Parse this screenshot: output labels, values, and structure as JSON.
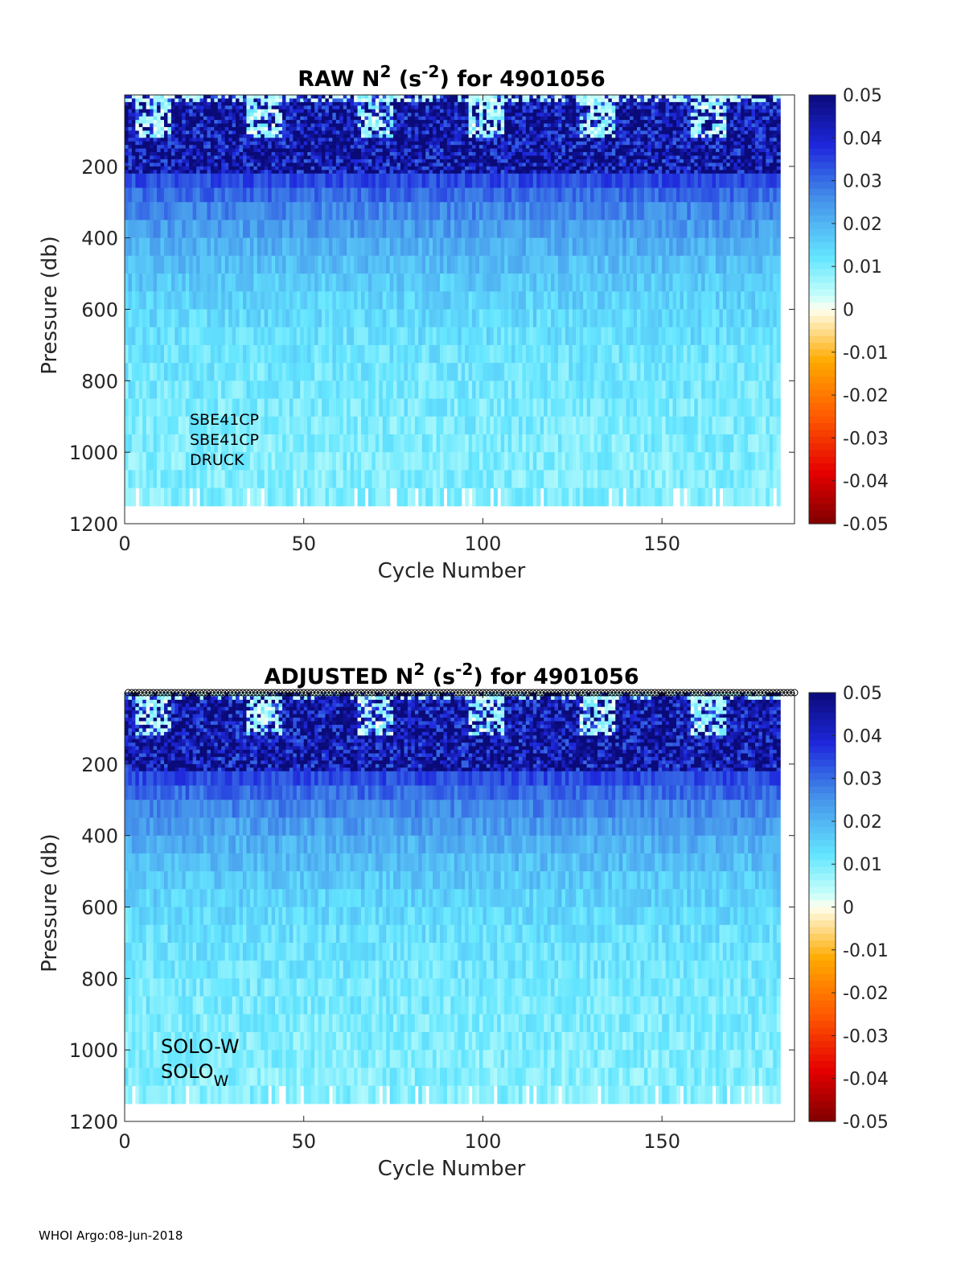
{
  "footer": "WHOI Argo:08-Jun-2018",
  "chart_data": [
    {
      "type": "heatmap",
      "title_parts": [
        "RAW N",
        "2",
        " (s",
        "-2",
        ") for 4901056"
      ],
      "xlabel": "Cycle Number",
      "ylabel": "Pressure (db)",
      "xlim": [
        0,
        187
      ],
      "ylim": [
        0,
        1200
      ],
      "y_reversed": true,
      "xticks": [
        0,
        50,
        100,
        150
      ],
      "yticks": [
        200,
        400,
        600,
        800,
        1000,
        1200
      ],
      "colorbar": {
        "range": [
          -0.05,
          0.05
        ],
        "ticks": [
          "0.05",
          "0.04",
          "0.03",
          "0.02",
          "0.01",
          "0",
          "-0.01",
          "-0.02",
          "-0.03",
          "-0.04",
          "-0.05"
        ]
      },
      "n_cycles": 183,
      "max_pressure": 1150,
      "annotations": [
        "SBE41CP",
        "SBE41CP",
        "DRUCK"
      ],
      "qc_markers": false
    },
    {
      "type": "heatmap",
      "title_parts": [
        "ADJUSTED N",
        "2",
        " (s",
        "-2",
        ") for 4901056"
      ],
      "xlabel": "Cycle Number",
      "ylabel": "Pressure (db)",
      "xlim": [
        0,
        187
      ],
      "ylim": [
        0,
        1200
      ],
      "y_reversed": true,
      "xticks": [
        0,
        50,
        100,
        150
      ],
      "yticks": [
        200,
        400,
        600,
        800,
        1000,
        1200
      ],
      "colorbar": {
        "range": [
          -0.05,
          0.05
        ],
        "ticks": [
          "0.05",
          "0.04",
          "0.03",
          "0.02",
          "0.01",
          "0",
          "-0.01",
          "-0.02",
          "-0.03",
          "-0.04",
          "-0.05"
        ]
      },
      "n_cycles": 183,
      "max_pressure": 1150,
      "annotations": [
        "SOLO-W"
      ],
      "annotation_sub": [
        "SOLO",
        "W"
      ],
      "qc_markers": true
    }
  ]
}
